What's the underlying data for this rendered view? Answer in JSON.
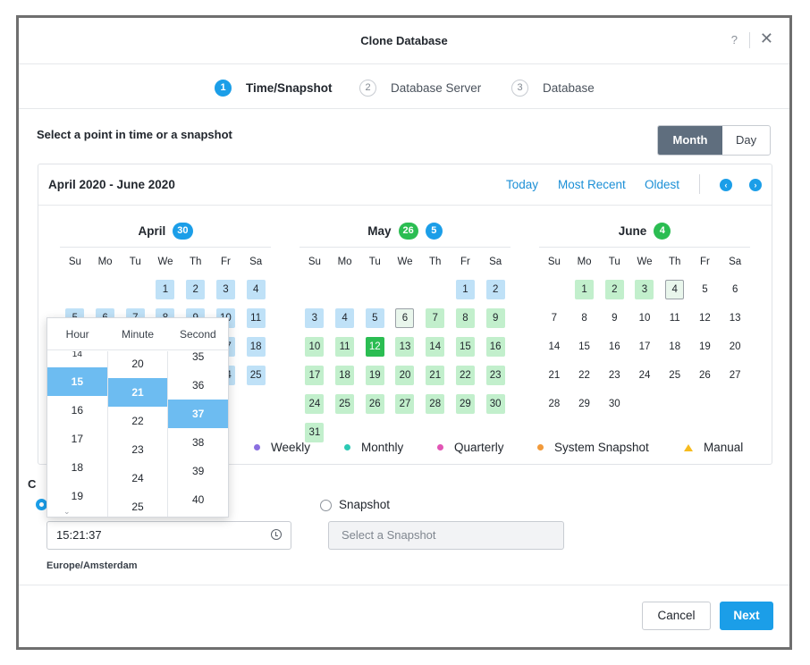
{
  "dialog": {
    "title": "Clone Database",
    "help": "?",
    "close": "✕"
  },
  "steps": [
    {
      "num": "1",
      "label": "Time/Snapshot"
    },
    {
      "num": "2",
      "label": "Database Server"
    },
    {
      "num": "3",
      "label": "Database"
    }
  ],
  "section_label": "Select a point in time or a snapshot",
  "view_toggle": {
    "month": "Month",
    "day": "Day",
    "active": "Month"
  },
  "calendar": {
    "range": "April 2020 - June 2020",
    "links": {
      "today": "Today",
      "most_recent": "Most Recent",
      "oldest": "Oldest"
    },
    "weekdays": [
      "Su",
      "Mo",
      "Tu",
      "We",
      "Th",
      "Fr",
      "Sa"
    ],
    "months": [
      {
        "name": "April",
        "badges": [
          {
            "value": "30",
            "color": "blue"
          }
        ]
      },
      {
        "name": "May",
        "badges": [
          {
            "value": "26",
            "color": "green"
          },
          {
            "value": "5",
            "color": "blue"
          }
        ]
      },
      {
        "name": "June",
        "badges": [
          {
            "value": "4",
            "color": "green"
          }
        ]
      }
    ]
  },
  "legend": [
    {
      "label": "Weekly",
      "color": "#8a6fe0",
      "shape": "dot"
    },
    {
      "label": "Monthly",
      "color": "#2cc9b4",
      "shape": "dot"
    },
    {
      "label": "Quarterly",
      "color": "#e255b5",
      "shape": "dot"
    },
    {
      "label": "System Snapshot",
      "color": "#f29a3a",
      "shape": "dot"
    },
    {
      "label": "Manual",
      "color": "#f7bb1e",
      "shape": "triangle"
    }
  ],
  "time_picker": {
    "headers": {
      "hour": "Hour",
      "minute": "Minute",
      "second": "Second"
    },
    "hours": [
      "14",
      "15",
      "16",
      "17",
      "18",
      "19"
    ],
    "minutes": [
      "20",
      "21",
      "22",
      "23",
      "24",
      "25"
    ],
    "seconds": [
      "35",
      "36",
      "37",
      "38",
      "39",
      "40"
    ],
    "selected": {
      "hour": "15",
      "minute": "21",
      "second": "37"
    }
  },
  "form": {
    "lower_label_partial": "C",
    "time_value": "15:21:37",
    "timezone": "Europe/Amsterdam",
    "snapshot_label": "Snapshot",
    "snapshot_placeholder": "Select a Snapshot"
  },
  "footer": {
    "cancel": "Cancel",
    "next": "Next"
  }
}
